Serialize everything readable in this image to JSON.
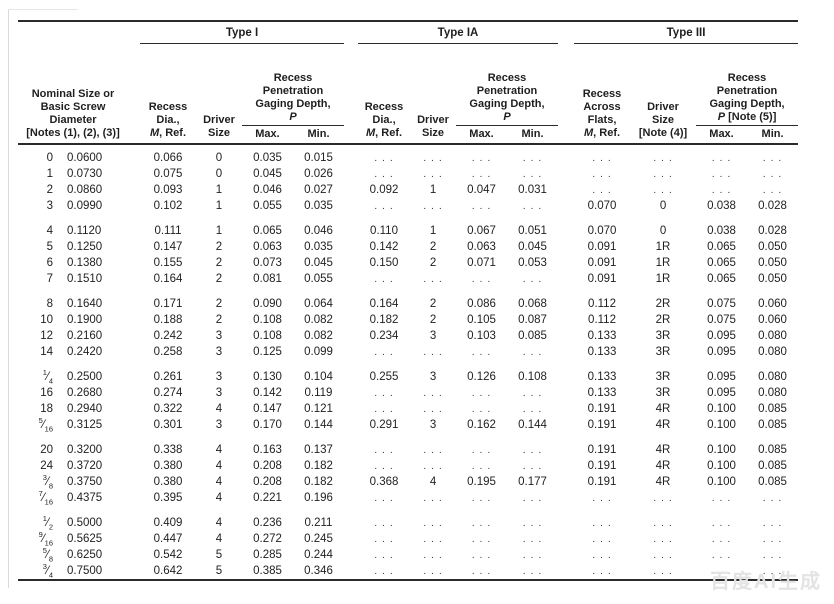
{
  "colors": {
    "ink": "#1f1f1f",
    "rule": "#2b2b2b",
    "dots_text": "#3a3a3a",
    "scan_edge": "#dadada",
    "watermark": "#e3e3e3",
    "paper": "#ffffff"
  },
  "page": {
    "watermark": "百度AI生成"
  },
  "table": {
    "nominal_header_lines": [
      "Nominal Size or",
      "Basic Screw",
      "Diameter",
      "[Notes (1), (2), (3)]"
    ],
    "column_names": [
      "size",
      "basic-diameter",
      "type-i-recess-dia",
      "type-i-driver-size",
      "type-i-max",
      "type-i-min",
      "type-ia-recess-dia",
      "type-ia-driver-size",
      "type-ia-max",
      "type-ia-min",
      "type-iii-recess-flats",
      "type-iii-driver-size",
      "type-iii-max",
      "type-iii-min"
    ],
    "groups": [
      {
        "label": "Type I",
        "dia_lines": [
          "Recess",
          "Dia.,",
          "M, Ref."
        ],
        "driver_lines": [
          "Driver",
          "Size"
        ],
        "penetration_lines": [
          "Recess",
          "Penetration",
          "Gaging Depth,",
          "P"
        ],
        "max_label": "Max.",
        "min_label": "Min."
      },
      {
        "label": "Type IA",
        "dia_lines": [
          "Recess",
          "Dia.,",
          "M, Ref."
        ],
        "driver_lines": [
          "Driver",
          "Size"
        ],
        "penetration_lines": [
          "Recess",
          "Penetration",
          "Gaging Depth,",
          "P"
        ],
        "max_label": "Max.",
        "min_label": "Min."
      },
      {
        "label": "Type III",
        "dia_lines": [
          "Recess",
          "Across",
          "Flats,",
          "M, Ref."
        ],
        "driver_lines": [
          "Driver",
          "Size",
          "[Note (4)]"
        ],
        "penetration_lines": [
          "Recess",
          "Penetration",
          "Gaging Depth,",
          "P [Note (5)]"
        ],
        "max_label": "Max.",
        "min_label": "Min."
      }
    ],
    "row_groups": [
      [
        [
          "0",
          "0.0600",
          "0.066",
          "0",
          "0.035",
          "0.015",
          "...",
          "...",
          "...",
          "...",
          "...",
          "...",
          "...",
          "..."
        ],
        [
          "1",
          "0.0730",
          "0.075",
          "0",
          "0.045",
          "0.026",
          "...",
          "...",
          "...",
          "...",
          "...",
          "...",
          "...",
          "..."
        ],
        [
          "2",
          "0.0860",
          "0.093",
          "1",
          "0.046",
          "0.027",
          "0.092",
          "1",
          "0.047",
          "0.031",
          "...",
          "...",
          "...",
          "..."
        ],
        [
          "3",
          "0.0990",
          "0.102",
          "1",
          "0.055",
          "0.035",
          "...",
          "...",
          "...",
          "...",
          "0.070",
          "0",
          "0.038",
          "0.028"
        ]
      ],
      [
        [
          "4",
          "0.1120",
          "0.111",
          "1",
          "0.065",
          "0.046",
          "0.110",
          "1",
          "0.067",
          "0.051",
          "0.070",
          "0",
          "0.038",
          "0.028"
        ],
        [
          "5",
          "0.1250",
          "0.147",
          "2",
          "0.063",
          "0.035",
          "0.142",
          "2",
          "0.063",
          "0.045",
          "0.091",
          "1R",
          "0.065",
          "0.050"
        ],
        [
          "6",
          "0.1380",
          "0.155",
          "2",
          "0.073",
          "0.045",
          "0.150",
          "2",
          "0.071",
          "0.053",
          "0.091",
          "1R",
          "0.065",
          "0.050"
        ],
        [
          "7",
          "0.1510",
          "0.164",
          "2",
          "0.081",
          "0.055",
          "...",
          "...",
          "...",
          "...",
          "0.091",
          "1R",
          "0.065",
          "0.050"
        ]
      ],
      [
        [
          "8",
          "0.1640",
          "0.171",
          "2",
          "0.090",
          "0.064",
          "0.164",
          "2",
          "0.086",
          "0.068",
          "0.112",
          "2R",
          "0.075",
          "0.060"
        ],
        [
          "10",
          "0.1900",
          "0.188",
          "2",
          "0.108",
          "0.082",
          "0.182",
          "2",
          "0.105",
          "0.087",
          "0.112",
          "2R",
          "0.075",
          "0.060"
        ],
        [
          "12",
          "0.2160",
          "0.242",
          "3",
          "0.108",
          "0.082",
          "0.234",
          "3",
          "0.103",
          "0.085",
          "0.133",
          "3R",
          "0.095",
          "0.080"
        ],
        [
          "14",
          "0.2420",
          "0.258",
          "3",
          "0.125",
          "0.099",
          "...",
          "...",
          "...",
          "...",
          "0.133",
          "3R",
          "0.095",
          "0.080"
        ]
      ],
      [
        [
          "1/4",
          "0.2500",
          "0.261",
          "3",
          "0.130",
          "0.104",
          "0.255",
          "3",
          "0.126",
          "0.108",
          "0.133",
          "3R",
          "0.095",
          "0.080"
        ],
        [
          "16",
          "0.2680",
          "0.274",
          "3",
          "0.142",
          "0.119",
          "...",
          "...",
          "...",
          "...",
          "0.133",
          "3R",
          "0.095",
          "0.080"
        ],
        [
          "18",
          "0.2940",
          "0.322",
          "4",
          "0.147",
          "0.121",
          "...",
          "...",
          "...",
          "...",
          "0.191",
          "4R",
          "0.100",
          "0.085"
        ],
        [
          "5/16",
          "0.3125",
          "0.301",
          "3",
          "0.170",
          "0.144",
          "0.291",
          "3",
          "0.162",
          "0.144",
          "0.191",
          "4R",
          "0.100",
          "0.085"
        ]
      ],
      [
        [
          "20",
          "0.3200",
          "0.338",
          "4",
          "0.163",
          "0.137",
          "...",
          "...",
          "...",
          "...",
          "0.191",
          "4R",
          "0.100",
          "0.085"
        ],
        [
          "24",
          "0.3720",
          "0.380",
          "4",
          "0.208",
          "0.182",
          "...",
          "...",
          "...",
          "...",
          "0.191",
          "4R",
          "0.100",
          "0.085"
        ],
        [
          "3/8",
          "0.3750",
          "0.380",
          "4",
          "0.208",
          "0.182",
          "0.368",
          "4",
          "0.195",
          "0.177",
          "0.191",
          "4R",
          "0.100",
          "0.085"
        ],
        [
          "7/16",
          "0.4375",
          "0.395",
          "4",
          "0.221",
          "0.196",
          "...",
          "...",
          "...",
          "...",
          "...",
          "...",
          "...",
          "..."
        ]
      ],
      [
        [
          "1/2",
          "0.5000",
          "0.409",
          "4",
          "0.236",
          "0.211",
          "...",
          "...",
          "...",
          "...",
          "...",
          "...",
          "...",
          "..."
        ],
        [
          "9/16",
          "0.5625",
          "0.447",
          "4",
          "0.272",
          "0.245",
          "...",
          "...",
          "...",
          "...",
          "...",
          "...",
          "...",
          "..."
        ],
        [
          "5/8",
          "0.6250",
          "0.542",
          "5",
          "0.285",
          "0.244",
          "...",
          "...",
          "...",
          "...",
          "...",
          "...",
          "...",
          "..."
        ],
        [
          "3/4",
          "0.7500",
          "0.642",
          "5",
          "0.385",
          "0.346",
          "...",
          "...",
          "...",
          "...",
          "...",
          "...",
          "...",
          "..."
        ]
      ]
    ]
  }
}
